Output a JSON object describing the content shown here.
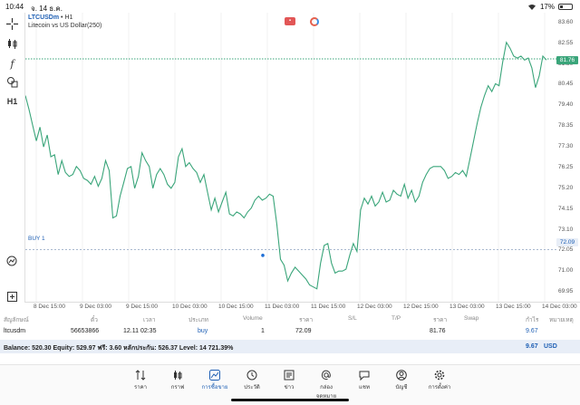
{
  "status": {
    "time": "10:44",
    "date": "จ. 14 ธ.ค.",
    "battery": "17%"
  },
  "chart": {
    "symbol": "LTCUSDm",
    "timeframe": "• H1",
    "description": "Litecoin vs US Dollar(250)",
    "bid_tag": "81.76",
    "buy_tag": "72.09",
    "buy_label": "BUY 1",
    "price_labels": [
      "83.60",
      "82.55",
      "81.50",
      "80.45",
      "79.40",
      "78.35",
      "77.30",
      "76.25",
      "75.20",
      "74.15",
      "73.10",
      "72.05",
      "71.00",
      "69.95"
    ],
    "time_labels": [
      "8 Dec 15:00",
      "9 Dec 03:00",
      "9 Dec 15:00",
      "10 Dec 03:00",
      "10 Dec 15:00",
      "11 Dec 03:00",
      "11 Dec 15:00",
      "12 Dec 03:00",
      "12 Dec 15:00",
      "13 Dec 03:00",
      "13 Dec 15:00",
      "14 Dec 03:00"
    ]
  },
  "chart_data": {
    "type": "line",
    "ylim": [
      69.45,
      84.1
    ],
    "values": [
      79.9,
      79.2,
      78.4,
      77.6,
      78.3,
      77.3,
      77.9,
      76.8,
      76.9,
      75.9,
      76.6,
      76.0,
      75.8,
      75.9,
      76.3,
      76.1,
      75.7,
      75.6,
      75.4,
      75.8,
      75.3,
      75.7,
      76.6,
      76.1,
      73.7,
      73.8,
      74.8,
      75.5,
      76.2,
      76.3,
      75.2,
      75.8,
      77.0,
      76.6,
      76.3,
      75.2,
      75.9,
      76.2,
      75.9,
      75.4,
      75.2,
      75.5,
      76.8,
      77.2,
      76.3,
      76.5,
      76.2,
      76.0,
      75.5,
      75.9,
      75.0,
      74.1,
      74.7,
      74.0,
      74.5,
      75.0,
      73.9,
      73.8,
      74.0,
      73.9,
      73.7,
      74.0,
      74.2,
      74.6,
      74.8,
      74.6,
      74.7,
      74.9,
      74.8,
      73.4,
      71.6,
      71.3,
      70.5,
      70.9,
      71.2,
      71.0,
      70.8,
      70.6,
      70.3,
      70.2,
      70.1,
      71.4,
      72.3,
      72.4,
      71.4,
      70.9,
      71.0,
      71.0,
      71.1,
      71.8,
      72.4,
      72.0,
      74.1,
      74.7,
      74.4,
      74.8,
      74.3,
      74.5,
      75.0,
      74.5,
      74.6,
      75.1,
      74.9,
      74.8,
      75.4,
      74.7,
      75.1,
      74.5,
      74.8,
      75.5,
      75.9,
      76.2,
      76.3,
      76.3,
      76.3,
      76.1,
      75.7,
      75.8,
      76.0,
      75.9,
      76.1,
      75.8,
      76.7,
      77.6,
      78.5,
      79.3,
      79.9,
      80.4,
      80.1,
      80.5,
      80.4,
      81.6,
      82.6,
      82.3,
      81.9,
      81.8,
      81.9,
      81.7,
      81.8,
      81.3,
      80.3,
      80.9,
      81.9,
      81.7
    ]
  },
  "table": {
    "headers": [
      "สัญลักษณ์",
      "ตั๋ว",
      "เวลา",
      "ประเภท",
      "Volume",
      "ราคา",
      "S/L",
      "T/P",
      "ราคา",
      "Swap",
      "กำไร",
      "หมายเหตุ"
    ],
    "row": {
      "symbol": "ltcusdm",
      "ticket": "56653866",
      "time": "12.11 02:35",
      "type": "buy",
      "volume": "1",
      "price": "72.09",
      "current": "81.76",
      "profit": "9.67"
    }
  },
  "balance": {
    "text": "Balance: 520.30 Equity: 529.97 ฟรี: 3.60 หลักประกัน: 526.37 Level: 14 721.39%",
    "total": "9.67",
    "currency": "USD"
  },
  "nav": [
    {
      "label": "ราคา",
      "icon": "quotes-icon"
    },
    {
      "label": "กราฟ",
      "icon": "candles-icon"
    },
    {
      "label": "การซื้อขาย",
      "icon": "trade-icon",
      "active": true
    },
    {
      "label": "ประวัติ",
      "icon": "history-icon"
    },
    {
      "label": "ข่าว",
      "icon": "news-icon"
    },
    {
      "label": "กล่องจดหมาย",
      "icon": "mail-icon"
    },
    {
      "label": "แชท",
      "icon": "chat-icon"
    },
    {
      "label": "บัญชี",
      "icon": "account-icon"
    },
    {
      "label": "การตั้งค่า",
      "icon": "settings-icon"
    }
  ]
}
